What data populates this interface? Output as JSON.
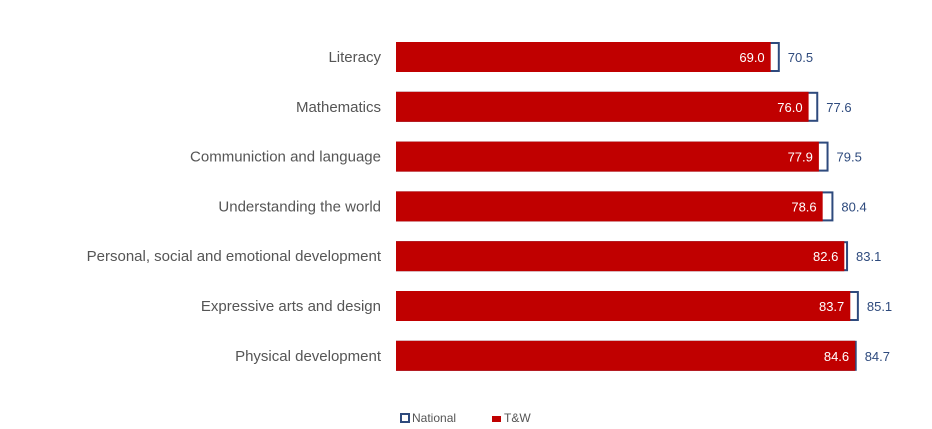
{
  "chart_data": {
    "type": "bar",
    "orientation": "horizontal",
    "title": "",
    "xlabel": "",
    "ylabel": "",
    "categories": [
      "Literacy",
      "Mathematics",
      "Communiction and language",
      "Understanding the world",
      "Personal, social and emotional development",
      "Expressive arts and design",
      "Physical development"
    ],
    "series": [
      {
        "name": "T&W",
        "color": "#c00000",
        "values": [
          69.0,
          76.0,
          77.9,
          78.6,
          82.6,
          83.7,
          84.6
        ],
        "labels": [
          "69.0",
          "76.0",
          "77.9",
          "78.6",
          "82.6",
          "83.7",
          "84.6"
        ]
      },
      {
        "name": "National",
        "color": "#2e4a7d",
        "values": [
          70.5,
          77.6,
          79.5,
          80.4,
          83.1,
          85.1,
          84.7
        ],
        "labels": [
          "70.5",
          "77.6",
          "79.5",
          "80.4",
          "83.1",
          "85.1",
          "84.7"
        ]
      }
    ],
    "xlim": [
      0,
      100
    ],
    "grid": false,
    "legend": "bottom"
  }
}
